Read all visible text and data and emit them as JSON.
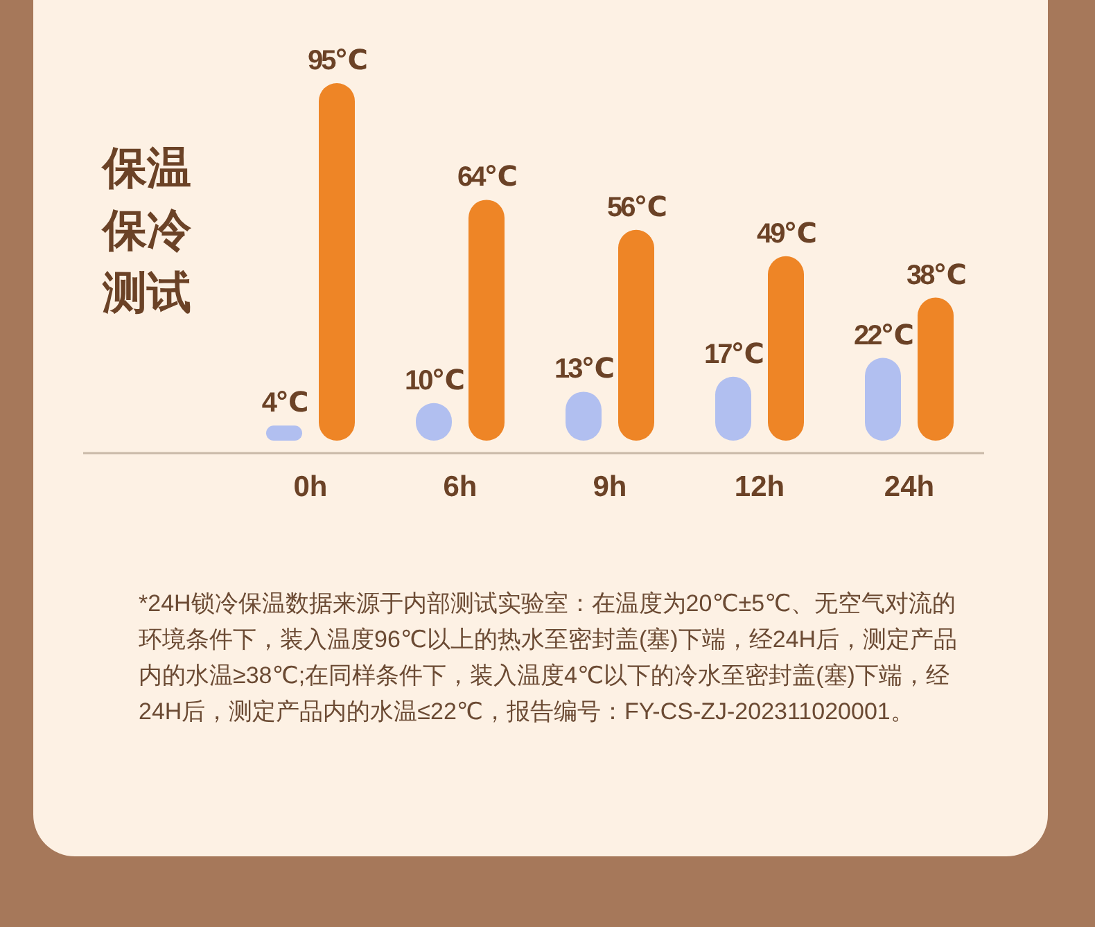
{
  "chart_data": {
    "type": "bar",
    "title": "保温保冷测试",
    "categories": [
      "0h",
      "6h",
      "9h",
      "12h",
      "24h"
    ],
    "series": [
      {
        "color": "#b1bff0",
        "values": [
          4,
          10,
          13,
          17,
          22
        ],
        "value_labels": [
          "4℃",
          "10℃",
          "13℃",
          "17℃",
          "22℃"
        ]
      },
      {
        "color": "#ee8526",
        "values": [
          95,
          64,
          56,
          49,
          38
        ],
        "value_labels": [
          "95℃",
          "64℃",
          "56℃",
          "49℃",
          "38℃"
        ]
      }
    ],
    "annotations": [
      "*24H锁冷保温数据来源于内部测试实验室：在温度为20℃±5℃、无空气对流的环境条件下，装入温度96℃以上的热水至密封盖(塞)下端，经24H后，测定产品内的水温≥38℃;在同样条件下，装入温度4℃以下的冷水至密封盖(塞)下端，经24H后，测定产品内的水温≤22℃，报告编号：FY-CS-ZJ-202311020001。"
    ]
  }
}
